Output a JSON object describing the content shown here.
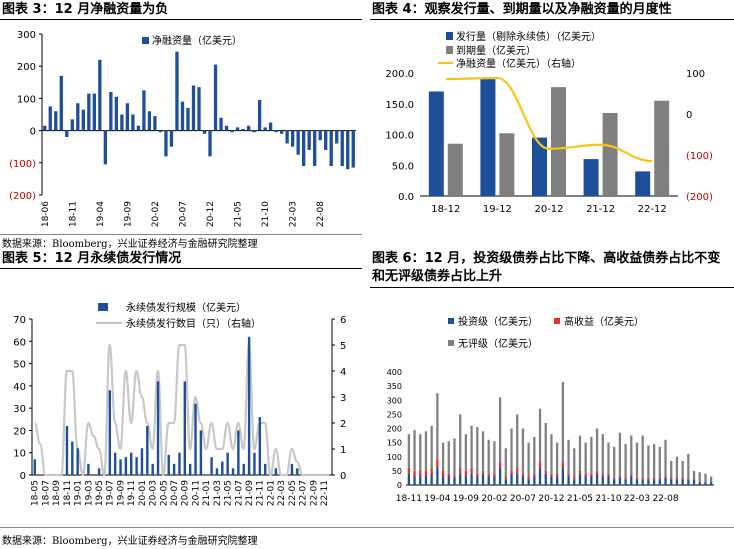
{
  "panels": {
    "p3": {
      "title": "图表 3：12 月净融资量为负"
    },
    "p4": {
      "title": "图表 4：观察发行量、到期量以及净融资量的月度性"
    },
    "p5": {
      "title": "图表 5：12 月永续债发行情况"
    },
    "p6": {
      "title": "图表 6：12 月，投资级债券占比下降、高收益债券占比不变和无评级债券占比上升"
    }
  },
  "sources": {
    "left": "数据来源：Bloomberg，兴业证券经济与金融研究院整理",
    "bottom": "数据来源：Bloomberg，兴业证券经济与金融研究院整理"
  },
  "colors": {
    "blue": "#1f4e9a",
    "gray": "#808080",
    "yellow": "#f5c518",
    "red": "#e03030",
    "lightgray": "#c8c8c8",
    "negRed": "#c00000"
  },
  "chart_data": [
    {
      "id": "fig3",
      "type": "bar",
      "legend": [
        "净融资量（亿美元）"
      ],
      "ylim": [
        -200,
        300
      ],
      "yticks": [
        300,
        200,
        100,
        0,
        -100,
        -200
      ],
      "ytick_labels": [
        "300",
        "200",
        "100",
        "0",
        "(100)",
        "(200)"
      ],
      "xtick_labels": [
        "18-06",
        "18-11",
        "19-04",
        "19-09",
        "20-02",
        "20-07",
        "20-12",
        "21-05",
        "21-10",
        "22-03",
        "22-08"
      ],
      "xtick_every": 5,
      "series": [
        {
          "name": "净融资量（亿美元）",
          "values": [
            15,
            75,
            60,
            170,
            -20,
            35,
            85,
            65,
            115,
            115,
            220,
            -105,
            120,
            105,
            50,
            85,
            50,
            15,
            125,
            60,
            45,
            -5,
            -80,
            -50,
            245,
            90,
            70,
            140,
            135,
            -10,
            -80,
            205,
            40,
            15,
            -5,
            10,
            5,
            15,
            -5,
            95,
            10,
            25,
            -5,
            -10,
            -40,
            -50,
            -75,
            -110,
            -60,
            -110,
            -30,
            -60,
            -110,
            -40,
            -110,
            -120,
            -115
          ]
        }
      ]
    },
    {
      "id": "fig4",
      "type": "bar",
      "categories": [
        "18-12",
        "19-12",
        "20-12",
        "21-12",
        "22-12"
      ],
      "ylim": [
        0,
        200
      ],
      "yticks": [
        0,
        50,
        100,
        150,
        200
      ],
      "ytick_labels": [
        "0.0",
        "50.0",
        "100.0",
        "150.0",
        "200.0"
      ],
      "y2lim": [
        -200,
        100
      ],
      "y2ticks": [
        100,
        0,
        -100,
        -200
      ],
      "y2tick_labels": [
        "100",
        "0",
        "(100)",
        "(200)"
      ],
      "series": [
        {
          "name": "发行量（剔除永续债）（亿美元）",
          "values": [
            170,
            190,
            95,
            60,
            40
          ]
        },
        {
          "name": "到期量（亿美元）",
          "values": [
            85,
            102,
            177,
            135,
            155
          ]
        },
        {
          "name": "净融资量（亿美元）（右轴）",
          "values": [
            85,
            88,
            -85,
            -75,
            -115
          ],
          "axis": "right"
        }
      ]
    },
    {
      "id": "fig5",
      "type": "bar",
      "ylim": [
        0,
        70
      ],
      "yticks": [
        0,
        10,
        20,
        30,
        40,
        50,
        60,
        70
      ],
      "y2lim": [
        0,
        6
      ],
      "y2ticks": [
        0,
        1,
        2,
        3,
        4,
        5,
        6
      ],
      "xtick_labels": [
        "18-05",
        "18-07",
        "18-09",
        "18-11",
        "19-01",
        "19-03",
        "19-05",
        "19-07",
        "19-09",
        "19-11",
        "20-01",
        "20-03",
        "20-05",
        "20-07",
        "20-09",
        "20-11",
        "21-01",
        "21-03",
        "21-05",
        "21-07",
        "21-09",
        "21-11",
        "22-01",
        "22-03",
        "22-05",
        "22-07",
        "22-09",
        "22-11"
      ],
      "xtick_every": 2,
      "series": [
        {
          "name": "永续债发行规模（亿美元）",
          "values": [
            7,
            0,
            0,
            0,
            0,
            0,
            22,
            15,
            12,
            0,
            5,
            0,
            3,
            0,
            38,
            10,
            7,
            8,
            10,
            8,
            12,
            22,
            5,
            42,
            0,
            9,
            5,
            10,
            42,
            5,
            32,
            20,
            0,
            8,
            3,
            6,
            10,
            3,
            20,
            5,
            62,
            10,
            26,
            5,
            0,
            3,
            0,
            0,
            5,
            3,
            0,
            0,
            0,
            0,
            0,
            0
          ]
        },
        {
          "name": "永续债发行数目（只）（右轴）",
          "values": [
            2,
            1.2,
            0,
            0,
            0,
            0,
            4,
            4,
            1,
            0,
            2,
            1.5,
            1,
            0,
            5,
            2,
            1,
            4,
            2,
            4,
            3,
            2,
            1,
            4,
            0,
            2,
            2,
            5,
            5,
            1,
            3,
            2,
            1,
            2,
            1,
            1,
            2,
            1,
            2,
            1,
            5,
            1,
            2,
            2,
            0,
            1,
            0,
            0,
            1,
            0.5,
            0,
            0,
            0,
            0,
            0,
            0
          ],
          "axis": "right"
        }
      ]
    },
    {
      "id": "fig6",
      "type": "bar",
      "stacked": true,
      "ylim": [
        0,
        400
      ],
      "yticks": [
        0,
        50,
        100,
        150,
        200,
        250,
        300,
        350,
        400
      ],
      "xtick_labels": [
        "18-11",
        "19-04",
        "19-09",
        "20-02",
        "20-07",
        "20-12",
        "21-05",
        "21-10",
        "22-03",
        "22-08"
      ],
      "xtick_every": 5,
      "series": [
        {
          "name": "投资级（亿美元）",
          "values": [
            40,
            30,
            30,
            30,
            40,
            60,
            30,
            30,
            25,
            40,
            30,
            40,
            30,
            40,
            30,
            30,
            60,
            20,
            40,
            40,
            30,
            20,
            30,
            60,
            40,
            30,
            30,
            60,
            30,
            20,
            40,
            30,
            30,
            40,
            30,
            30,
            20,
            25,
            20,
            30,
            20,
            20,
            20,
            20,
            20,
            25,
            20,
            20,
            20,
            20,
            20,
            10,
            10,
            10
          ]
        },
        {
          "name": "高收益（亿美元）",
          "values": [
            20,
            20,
            20,
            20,
            20,
            30,
            20,
            10,
            10,
            20,
            20,
            20,
            10,
            10,
            10,
            10,
            20,
            10,
            10,
            20,
            10,
            10,
            10,
            20,
            10,
            10,
            10,
            20,
            10,
            10,
            10,
            10,
            10,
            10,
            10,
            10,
            5,
            5,
            5,
            5,
            5,
            5,
            5,
            5,
            5,
            5,
            5,
            5,
            5,
            0,
            0,
            0,
            0,
            0
          ]
        },
        {
          "name": "无评级（亿美元）",
          "values": [
            120,
            145,
            130,
            140,
            150,
            235,
            100,
            115,
            130,
            190,
            130,
            150,
            165,
            140,
            120,
            115,
            230,
            100,
            150,
            190,
            160,
            120,
            130,
            190,
            170,
            140,
            110,
            285,
            120,
            100,
            125,
            110,
            130,
            150,
            140,
            110,
            110,
            155,
            120,
            140,
            125,
            150,
            115,
            120,
            110,
            130,
            60,
            75,
            60,
            90,
            30,
            35,
            30,
            20
          ]
        }
      ]
    }
  ]
}
